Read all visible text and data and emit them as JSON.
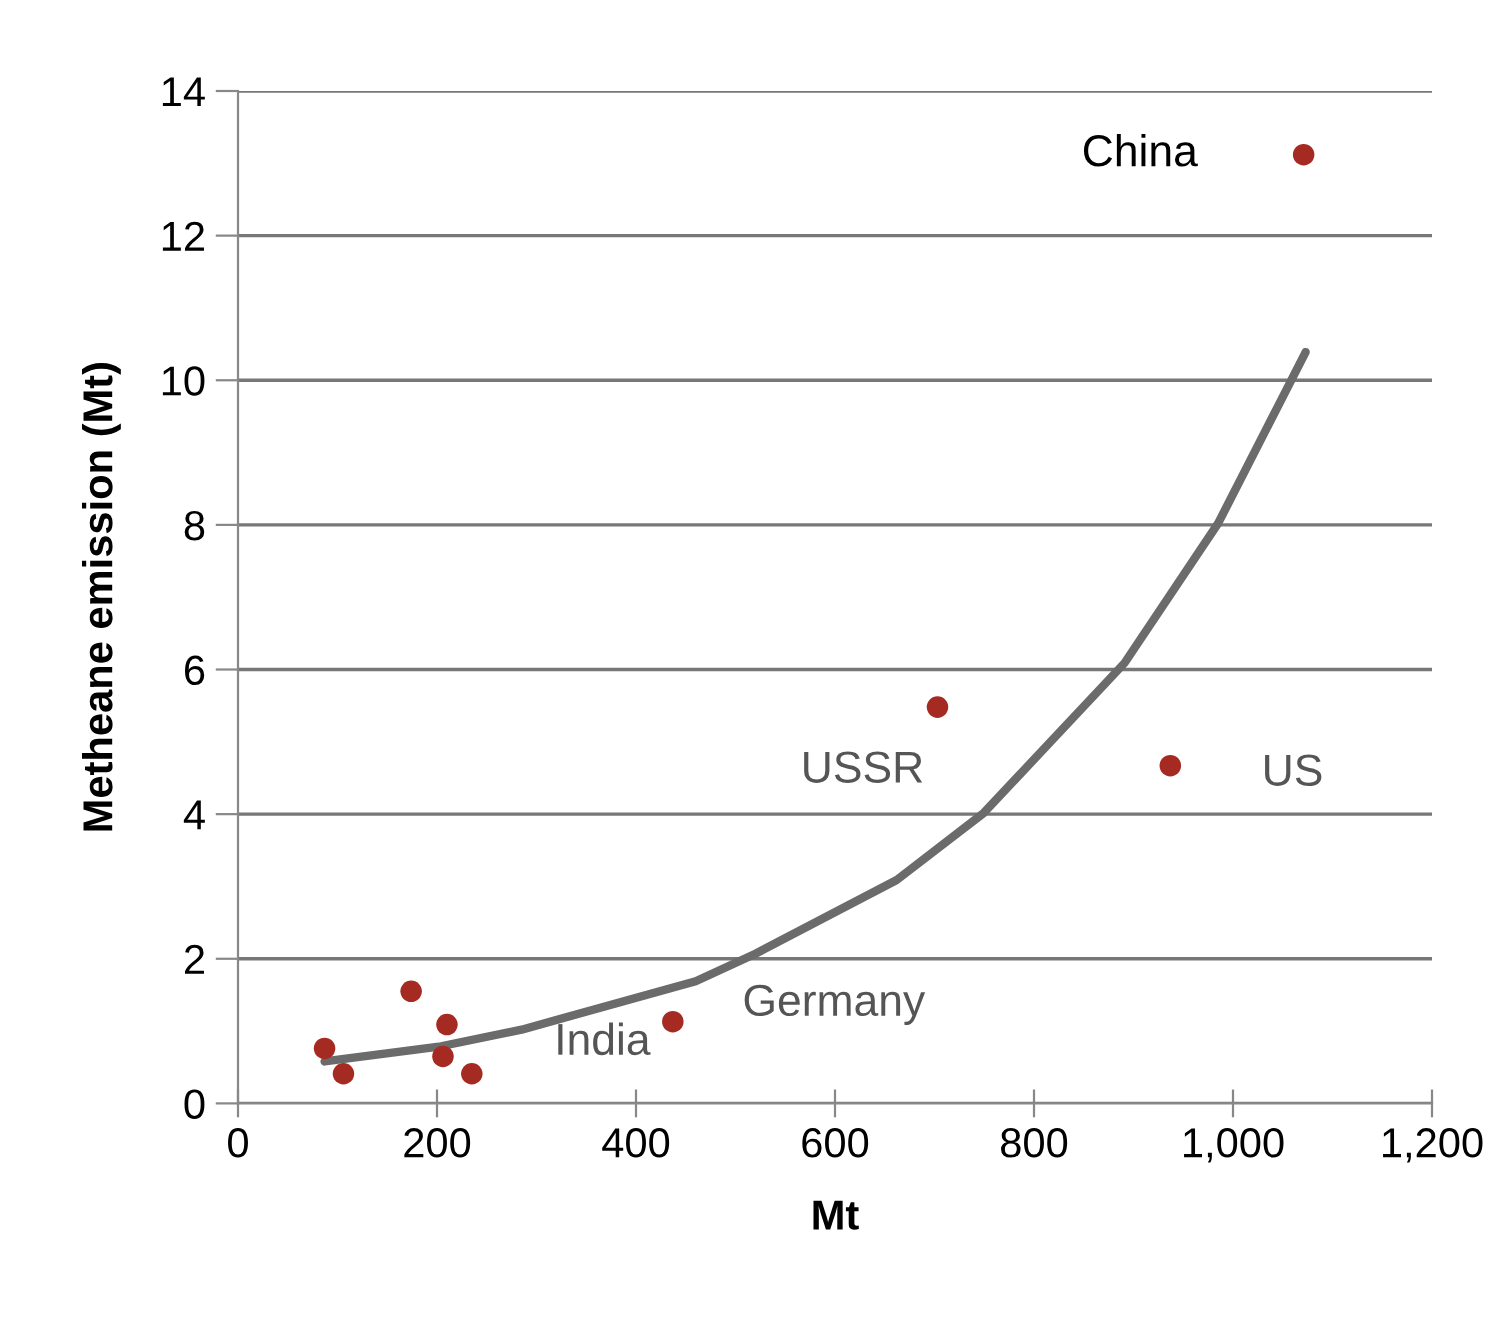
{
  "chart_data": {
    "type": "scatter",
    "xlabel": "Mt",
    "ylabel": "Metheane emission (Mt)",
    "xlim": [
      0,
      1200
    ],
    "xticks": [
      0,
      200,
      400,
      600,
      800,
      {
        "value": 1000,
        "label": "1,000"
      },
      {
        "value": 1200,
        "label": "1,200"
      }
    ],
    "ylim": [
      0,
      14
    ],
    "yticks": [
      0,
      2,
      4,
      6,
      8,
      10,
      12,
      14
    ],
    "grid": "y",
    "marker": "circle",
    "series": [
      {
        "color": "#a52a22",
        "x": [
          87,
          106,
          174,
          210,
          206,
          235,
          437,
          1071,
          703,
          937
        ],
        "values": [
          0.76,
          0.41,
          1.55,
          1.09,
          0.65,
          0.41,
          1.13,
          13.12,
          5.48,
          4.67
        ]
      },
      {
        "type": "line",
        "color": "#6b6b6b",
        "marker": "none",
        "x": [
          87,
          204,
          285,
          460,
          520,
          662,
          749,
          891,
          985,
          1073
        ],
        "values": [
          0.58,
          0.79,
          1.02,
          1.69,
          2.07,
          3.09,
          4.01,
          6.09,
          8.02,
          10.39
        ]
      }
    ],
    "annotations": [
      {
        "text": "China",
        "x": 1071,
        "y": 13.12
      },
      {
        "text": "USSR",
        "x": 703,
        "y": 5.48
      },
      {
        "text": "US",
        "x": 937,
        "y": 4.67
      },
      "Germany",
      {
        "text": "India",
        "x": 235,
        "y": 0.41
      }
    ]
  }
}
